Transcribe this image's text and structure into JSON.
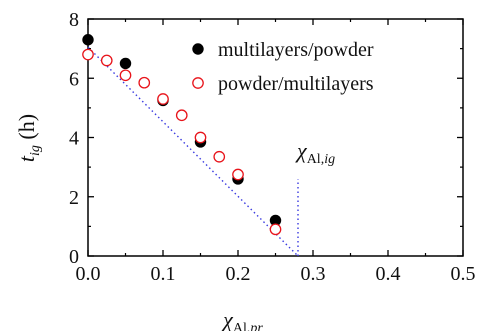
{
  "chart_data": {
    "type": "scatter",
    "title": "",
    "xlim": [
      0.0,
      0.5
    ],
    "ylim": [
      0,
      8
    ],
    "x_ticks": [
      "0.0",
      "0.1",
      "0.2",
      "0.3",
      "0.4",
      "0.5"
    ],
    "y_ticks": [
      "0",
      "2",
      "4",
      "6",
      "8"
    ],
    "x_tick_values": [
      0.0,
      0.1,
      0.2,
      0.3,
      0.4,
      0.5
    ],
    "y_tick_values": [
      0,
      2,
      4,
      6,
      8
    ],
    "xlabel": {
      "symbol": "χ",
      "sub_plain": "Al,",
      "sub_italic": "pr"
    },
    "ylabel": {
      "symbol": "t",
      "sub_italic": "ig",
      "unit": " (h)"
    },
    "legend_position": "top-right",
    "grid": false,
    "series": [
      {
        "name": "multilayers/powder",
        "marker": "filled-circle",
        "color": "#000000",
        "x": [
          0.0,
          0.05,
          0.1,
          0.15,
          0.2,
          0.25
        ],
        "y": [
          7.3,
          6.5,
          5.25,
          3.85,
          2.6,
          1.2
        ]
      },
      {
        "name": "powder/multilayers",
        "marker": "open-circle",
        "color": "#e8141b",
        "x": [
          0.0,
          0.025,
          0.05,
          0.075,
          0.1,
          0.125,
          0.15,
          0.175,
          0.2,
          0.25
        ],
        "y": [
          6.8,
          6.6,
          6.1,
          5.85,
          5.3,
          4.75,
          4.0,
          3.35,
          2.75,
          0.9
        ]
      }
    ],
    "fit_line": {
      "style": "dotted",
      "color": "#3a3ae0",
      "x": [
        0.0,
        0.28
      ],
      "y": [
        7.05,
        0
      ]
    },
    "annotation": {
      "symbol": "χ",
      "sub_plain": "Al,",
      "sub_italic": "ig",
      "line_x": 0.28,
      "line_y": [
        0,
        2.6
      ],
      "color": "#3a3ae0"
    }
  }
}
